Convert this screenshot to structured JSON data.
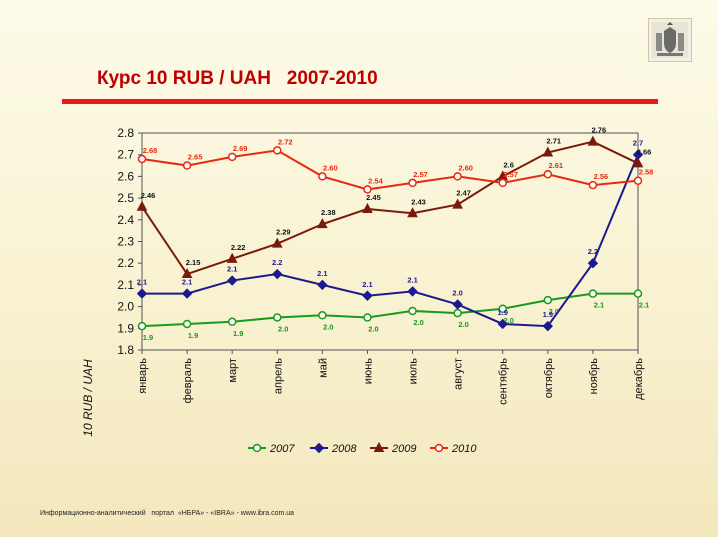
{
  "title": "Курс 10 RUB / UAH   2007-2010",
  "footer": "Информационно-аналитический   портал  «НБРА» - «IBRA» - www.ibra.com.ua",
  "logo_icon": "coat-of-arms-icon",
  "chart_data": {
    "type": "line",
    "title": "Курс 10 RUB / UAH   2007-2010",
    "ylabel": "10 RUB / UAH",
    "xlabel": "",
    "ylim": [
      1.8,
      2.8
    ],
    "yticks": [
      "2.8",
      "2.7",
      "2.6",
      "2.5",
      "2.4",
      "2.3",
      "2.2",
      "2.1",
      "2.0",
      "1.9",
      "1.8"
    ],
    "grid": false,
    "legend_position": "bottom",
    "categories": [
      "январь",
      "февраль",
      "март",
      "апрель",
      "май",
      "июнь",
      "июль",
      "август",
      "сентябрь",
      "октябрь",
      "ноябрь",
      "декабрь"
    ],
    "series": [
      {
        "name": "2007",
        "color": "#1a9a1a",
        "marker": "circle",
        "values": [
          1.91,
          1.92,
          1.93,
          1.95,
          1.96,
          1.95,
          1.98,
          1.97,
          1.99,
          2.03,
          2.06,
          2.06
        ],
        "labels": [
          "1.9",
          "1.9",
          "1.9",
          "2.0",
          "2.0",
          "2.0",
          "2.0",
          "2.0",
          "2.0",
          "2.0",
          "2.1",
          "2.1"
        ]
      },
      {
        "name": "2008",
        "color": "#1c1a8c",
        "marker": "diamond",
        "values": [
          2.06,
          2.06,
          2.12,
          2.15,
          2.1,
          2.05,
          2.07,
          2.01,
          1.92,
          1.91,
          2.2,
          2.7
        ],
        "labels": [
          "2.1",
          "2.1",
          "2.1",
          "2.2",
          "2.1",
          "2.1",
          "2.1",
          "2.0",
          "1.9",
          "1.9",
          "2.2",
          "2.7"
        ]
      },
      {
        "name": "2009",
        "color": "#7a1a0a",
        "marker": "triangle",
        "values": [
          2.46,
          2.15,
          2.22,
          2.29,
          2.38,
          2.45,
          2.43,
          2.47,
          2.6,
          2.71,
          2.76,
          2.66
        ],
        "labels": [
          "2.46",
          "2.15",
          "2.22",
          "2.29",
          "2.38",
          "2.45",
          "2.43",
          "2.47",
          "2.6",
          "2.71",
          "2.76",
          "2.66"
        ]
      },
      {
        "name": "2010",
        "color": "#e8280f",
        "marker": "circle",
        "values": [
          2.68,
          2.65,
          2.69,
          2.72,
          2.6,
          2.54,
          2.57,
          2.6,
          2.57,
          2.61,
          2.56,
          2.58
        ],
        "labels": [
          "2.68",
          "2.65",
          "2.69",
          "2.72",
          "2.60",
          "2.54",
          "2.57",
          "2.60",
          "2.57",
          "2.61",
          "2.56",
          "2.58"
        ]
      }
    ]
  }
}
